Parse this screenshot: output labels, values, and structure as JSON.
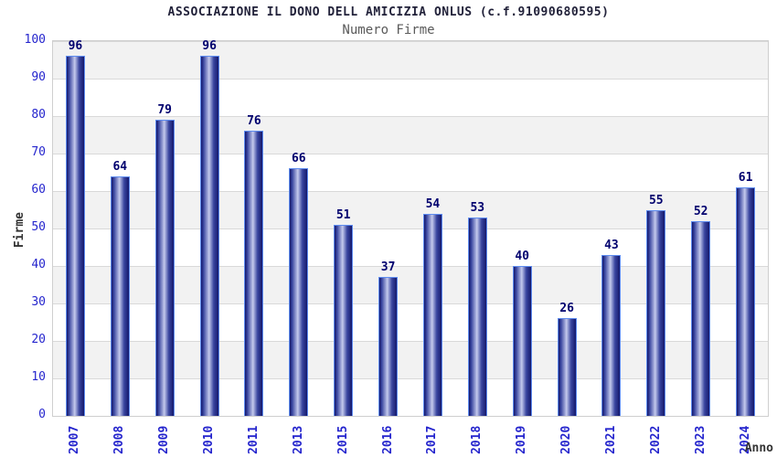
{
  "header": {
    "title": "ASSOCIAZIONE IL DONO DELL AMICIZIA ONLUS (c.f.91090680595)",
    "subtitle": "Numero Firme"
  },
  "chart_data": {
    "type": "bar",
    "title": "ASSOCIAZIONE IL DONO DELL AMICIZIA ONLUS (c.f.91090680595)",
    "subtitle": "Numero Firme",
    "xlabel": "Anno",
    "ylabel": "Firme",
    "categories": [
      "2007",
      "2008",
      "2009",
      "2010",
      "2011",
      "2013",
      "2015",
      "2016",
      "2017",
      "2018",
      "2019",
      "2020",
      "2021",
      "2022",
      "2023",
      "2024"
    ],
    "values": [
      96,
      64,
      79,
      96,
      76,
      66,
      51,
      37,
      54,
      53,
      40,
      26,
      43,
      55,
      52,
      61
    ],
    "ylim": [
      0,
      100
    ],
    "ytick_step": 10,
    "yticks": [
      0,
      10,
      20,
      30,
      40,
      50,
      60,
      70,
      80,
      90,
      100
    ],
    "grid": true,
    "legend": false,
    "band_fill": "alternating gray/white horizontal bands"
  },
  "colors": {
    "title": "#22223a",
    "subtitle": "#5a5a5a",
    "tick_label": "#2525cd",
    "value_label": "#00006e",
    "axis_title": "#333333",
    "bar_border": "#5e8cf0",
    "bar_dark": "#14186b",
    "bar_mid": "#3a46a0",
    "bar_light": "#c3c9ec",
    "band_gray": "#f2f2f2",
    "band_white": "#ffffff",
    "gridline": "#d9d9d9"
  }
}
